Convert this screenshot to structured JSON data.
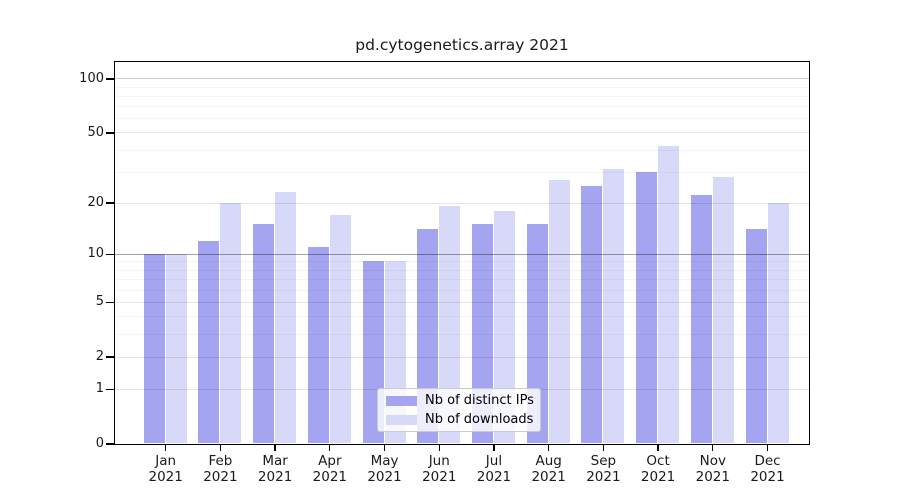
{
  "title": "pd.cytogenetics.array 2021",
  "chart_data": {
    "type": "bar",
    "title": "pd.cytogenetics.array 2021",
    "categories": [
      "Jan",
      "Feb",
      "Mar",
      "Apr",
      "May",
      "Jun",
      "Jul",
      "Aug",
      "Sep",
      "Oct",
      "Nov",
      "Dec"
    ],
    "year_label": "2021",
    "series": [
      {
        "name": "Nb of distinct IPs",
        "color": "#a4a4f1",
        "values": [
          10,
          12,
          15,
          11,
          9,
          14,
          15,
          15,
          25,
          30,
          22,
          14
        ]
      },
      {
        "name": "Nb of downloads",
        "color": "#d8d8f8",
        "values": [
          10,
          20,
          23,
          17,
          9,
          19,
          18,
          27,
          31,
          42,
          28,
          20
        ]
      }
    ],
    "xlabel": "",
    "ylabel": "",
    "yscale": "log1p",
    "ylim": [
      0,
      124
    ],
    "yticks": [
      0,
      1,
      2,
      5,
      10,
      20,
      50,
      100
    ],
    "minor_gridlines": [
      3,
      4,
      6,
      7,
      8,
      9,
      30,
      40,
      60,
      70,
      80,
      90
    ],
    "emphasized_gridlines": {
      "strong": 10,
      "medium": 100
    },
    "grid": true,
    "legend_position": "bottom-center"
  },
  "legend": {
    "entries": [
      "Nb of distinct IPs",
      "Nb of downloads"
    ]
  }
}
